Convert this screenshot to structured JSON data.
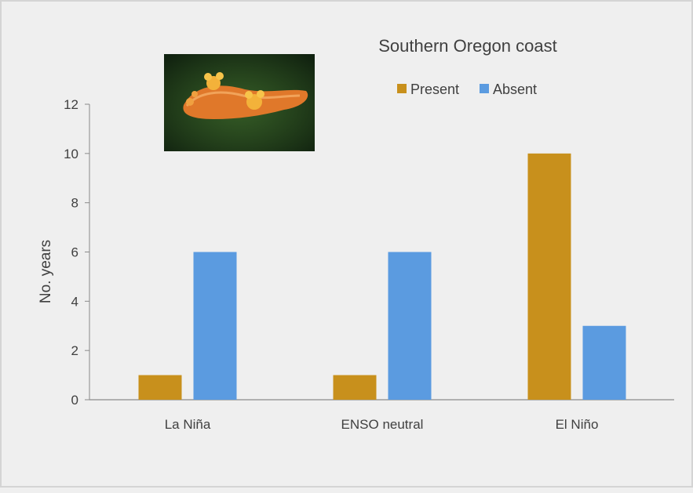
{
  "chart_data": {
    "type": "bar",
    "title": "Southern Oregon coast",
    "ylabel": "No. years",
    "xlabel": "",
    "categories": [
      "La Niña",
      "ENSO neutral",
      "El Niño"
    ],
    "series": [
      {
        "name": "Present",
        "values": [
          1,
          1,
          10
        ],
        "color": "#c8901c"
      },
      {
        "name": "Absent",
        "values": [
          6,
          6,
          3
        ],
        "color": "#5b9be0"
      }
    ],
    "ylim": [
      0,
      12
    ],
    "yticks": [
      0,
      2,
      4,
      6,
      8,
      10,
      12
    ],
    "grid": false,
    "legend_position": "top-center",
    "inset_image": "orange nudibranch photo"
  }
}
